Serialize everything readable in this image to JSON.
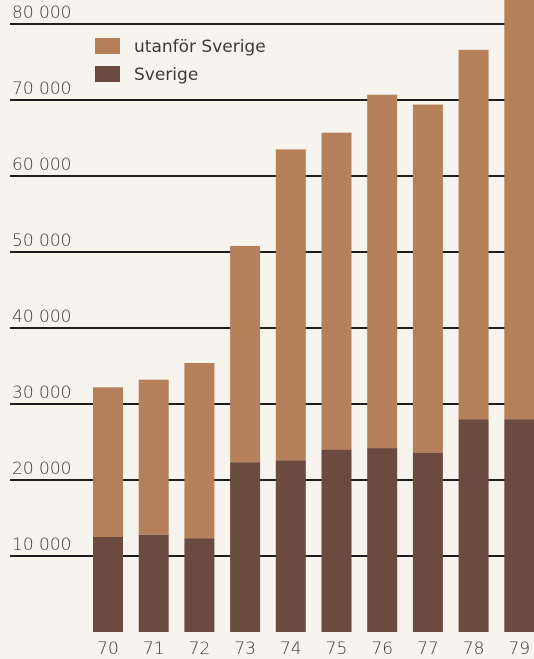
{
  "chart_data": {
    "type": "bar",
    "stacked": true,
    "categories": [
      "70",
      "71",
      "72",
      "73",
      "74",
      "75",
      "76",
      "77",
      "78",
      "79"
    ],
    "series": [
      {
        "name": "Sverige",
        "color": "#6b4a3f",
        "values": [
          12500,
          12800,
          12300,
          22300,
          22600,
          24000,
          24200,
          23600,
          28000,
          28000
        ]
      },
      {
        "name": "utanför Sverige",
        "color": "#b5805a",
        "values": [
          19700,
          20400,
          23100,
          28500,
          40900,
          41700,
          46500,
          45800,
          48600,
          55800
        ]
      }
    ],
    "yticks": [
      "10 000",
      "20 000",
      "30 000",
      "40 000",
      "50 000",
      "60 000",
      "70 000",
      "80 000"
    ],
    "ylim": [
      0,
      84000
    ],
    "grid": true,
    "legend": {
      "position": "top-left",
      "entries": [
        {
          "label": "utanför Sverige",
          "color": "#b5805a"
        },
        {
          "label": "Sverige",
          "color": "#6b4a3f"
        }
      ]
    },
    "title": "",
    "xlabel": "",
    "ylabel": ""
  }
}
